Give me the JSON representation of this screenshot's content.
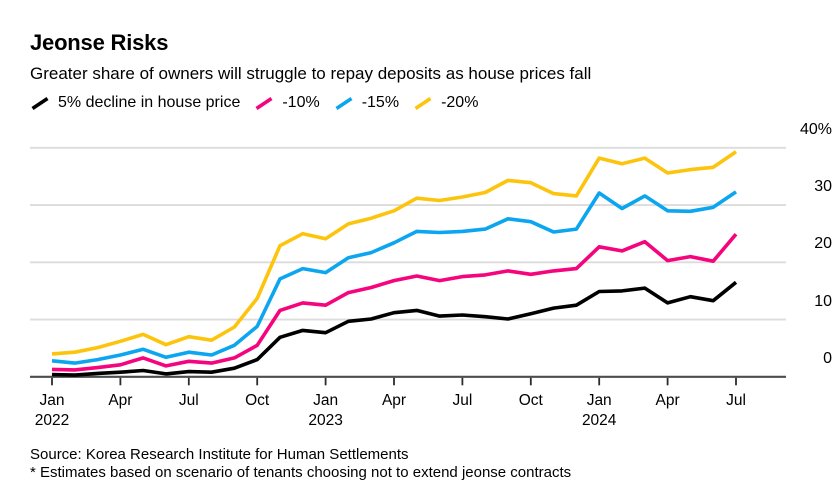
{
  "header": {
    "title": "Jeonse Risks",
    "subtitle": "Greater share of owners will struggle to repay deposits as house prices fall"
  },
  "legend": {
    "items": [
      {
        "label": "5% decline in house price",
        "color": "#000000"
      },
      {
        "label": "-10%",
        "color": "#f5047e"
      },
      {
        "label": "-15%",
        "color": "#0ba5f0"
      },
      {
        "label": "-20%",
        "color": "#fdc40d"
      }
    ]
  },
  "chart_data": {
    "type": "line",
    "title": "Jeonse Risks",
    "subtitle": "Greater share of owners will struggle to repay deposits as house prices fall",
    "x_unit": "month",
    "grid": "horizontal",
    "legend_position": "top",
    "yaxis": {
      "side": "right",
      "range": [
        0,
        40
      ],
      "ticks": [
        {
          "value": 0,
          "label": "0"
        },
        {
          "value": 10,
          "label": "10"
        },
        {
          "value": 20,
          "label": "20"
        },
        {
          "value": 30,
          "label": "30"
        },
        {
          "value": 40,
          "label": "40%"
        }
      ]
    },
    "xaxis": {
      "ticks": [
        {
          "label": "Jan",
          "year": "2022",
          "index": 0
        },
        {
          "label": "Apr",
          "index": 3
        },
        {
          "label": "Jul",
          "index": 6
        },
        {
          "label": "Oct",
          "index": 9
        },
        {
          "label": "Jan",
          "year": "2023",
          "index": 12
        },
        {
          "label": "Apr",
          "index": 15
        },
        {
          "label": "Jul",
          "index": 18
        },
        {
          "label": "Oct",
          "index": 21
        },
        {
          "label": "Jan",
          "year": "2024",
          "index": 24
        },
        {
          "label": "Apr",
          "index": 27
        },
        {
          "label": "Jul",
          "index": 30
        }
      ]
    },
    "categories": [
      "Jan 2022",
      "Feb 2022",
      "Mar 2022",
      "Apr 2022",
      "May 2022",
      "Jun 2022",
      "Jul 2022",
      "Aug 2022",
      "Sep 2022",
      "Oct 2022",
      "Nov 2022",
      "Dec 2022",
      "Jan 2023",
      "Feb 2023",
      "Mar 2023",
      "Apr 2023",
      "May 2023",
      "Jun 2023",
      "Jul 2023",
      "Aug 2023",
      "Sep 2023",
      "Oct 2023",
      "Nov 2023",
      "Dec 2023",
      "Jan 2024",
      "Feb 2024",
      "Mar 2024",
      "Apr 2024",
      "May 2024",
      "Jun 2024",
      "Jul 2024"
    ],
    "series": [
      {
        "name": "5% decline in house price",
        "color": "#000000",
        "values": [
          0.4,
          0.3,
          0.6,
          0.8,
          1.1,
          0.5,
          0.9,
          0.8,
          1.5,
          3.0,
          6.9,
          8.1,
          7.7,
          9.7,
          10.1,
          11.2,
          11.6,
          10.6,
          10.8,
          10.5,
          10.1,
          11.0,
          12.0,
          12.5,
          14.9,
          15.0,
          15.5,
          12.9,
          14.0,
          13.3,
          16.5
        ]
      },
      {
        "name": "-10%",
        "color": "#f5047e",
        "values": [
          1.3,
          1.2,
          1.6,
          2.1,
          3.3,
          1.9,
          2.7,
          2.4,
          3.3,
          5.5,
          11.6,
          12.9,
          12.5,
          14.7,
          15.6,
          16.8,
          17.6,
          16.8,
          17.5,
          17.8,
          18.5,
          17.9,
          18.5,
          18.9,
          22.7,
          22.0,
          23.6,
          20.3,
          21.0,
          20.2,
          24.9
        ]
      },
      {
        "name": "-15%",
        "color": "#0ba5f0",
        "values": [
          2.8,
          2.4,
          3.0,
          3.8,
          4.8,
          3.4,
          4.3,
          3.8,
          5.5,
          8.8,
          17.1,
          18.9,
          18.2,
          20.8,
          21.7,
          23.4,
          25.4,
          25.2,
          25.4,
          25.8,
          27.6,
          27.1,
          25.3,
          25.8,
          32.1,
          29.4,
          31.6,
          29.0,
          28.9,
          29.6,
          32.3
        ]
      },
      {
        "name": "-20%",
        "color": "#fdc40d",
        "values": [
          4.0,
          4.3,
          5.1,
          6.2,
          7.4,
          5.6,
          7.0,
          6.4,
          8.7,
          13.7,
          22.9,
          25.0,
          24.1,
          26.7,
          27.7,
          29.0,
          31.2,
          30.8,
          31.4,
          32.2,
          34.3,
          33.9,
          32.0,
          31.6,
          38.2,
          37.2,
          38.2,
          35.6,
          36.2,
          36.6,
          39.3
        ]
      }
    ],
    "axis_colors": {
      "gridline": "#dcdcdc",
      "zero_line": "#4d4d4d",
      "tick": "#2b2b2b"
    }
  },
  "footer": {
    "source": "Source: Korea Research Institute for Human Settlements",
    "note": "* Estimates based on scenario of tenants choosing not to extend jeonse contracts"
  }
}
